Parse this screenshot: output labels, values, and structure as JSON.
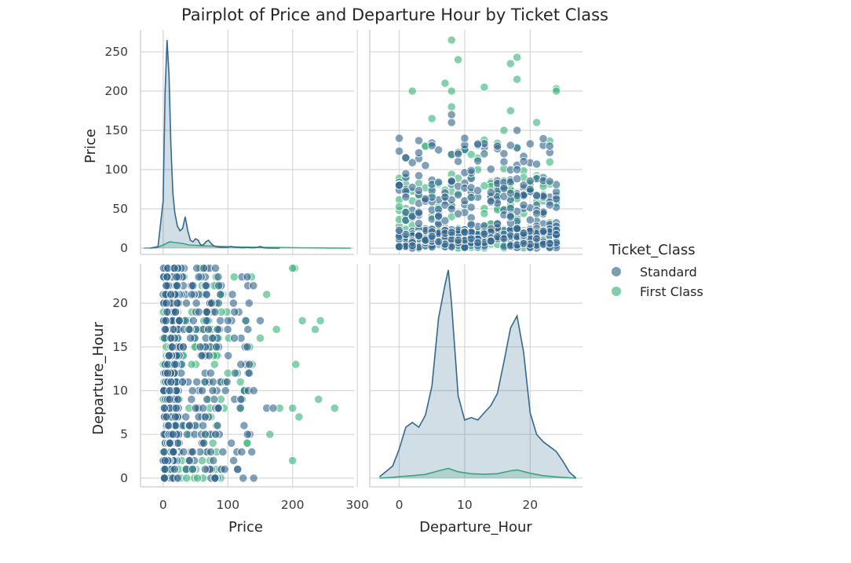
{
  "chart_data": {
    "type": "scatter",
    "title": "Pairplot of Price and Departure Hour by Ticket Class",
    "variables": [
      "Price",
      "Departure_Hour"
    ],
    "hue_variable": "Ticket_Class",
    "legend": {
      "title": "Ticket_Class",
      "position": "right",
      "entries": [
        "Standard",
        "First Class"
      ]
    },
    "colors": {
      "Standard": "#33688e",
      "First Class": "#3cb57a",
      "grid": "#d6d6d6",
      "background": "#ffffff"
    },
    "grid": true,
    "axes": {
      "Price": {
        "label": "Price",
        "range": [
          -35,
          295
        ],
        "ticks": [
          0,
          100,
          200,
          300
        ],
        "y_ticks": [
          0,
          50,
          100,
          150,
          200,
          250
        ],
        "y_range": [
          -8,
          278
        ]
      },
      "Departure_Hour": {
        "label": "Departure_Hour",
        "range": [
          -4.5,
          28
        ],
        "ticks": [
          0,
          10,
          20
        ],
        "y_ticks": [
          0,
          5,
          10,
          15,
          20
        ],
        "y_range": [
          -1,
          24.5
        ]
      }
    },
    "diagonal": [
      {
        "variable": "Price",
        "type": "kde",
        "series": [
          {
            "name": "Standard",
            "x": [
              -20,
              -8,
              0,
              3,
              6,
              9,
              12,
              15,
              18,
              22,
              26,
              30,
              34,
              38,
              42,
              46,
              50,
              54,
              58,
              62,
              66,
              70,
              74,
              78,
              82,
              88,
              95,
              100,
              105,
              110,
              115,
              120,
              125,
              130,
              135,
              140,
              145,
              150,
              155,
              160,
              170,
              180
            ],
            "y": [
              0,
              2,
              60,
              200,
              265,
              220,
              130,
              70,
              45,
              28,
              22,
              25,
              40,
              22,
              10,
              8,
              12,
              10,
              4,
              4,
              8,
              10,
              6,
              3,
              2,
              1,
              1,
              1,
              2,
              1,
              1,
              0.5,
              0.5,
              1,
              0.5,
              0.5,
              1,
              2,
              0.5,
              0.2,
              0,
              0
            ]
          },
          {
            "name": "First Class",
            "x": [
              -30,
              -10,
              0,
              10,
              20,
              30,
              40,
              60,
              80,
              100,
              120,
              150,
              180,
              210,
              240,
              270,
              290
            ],
            "y": [
              0,
              0.5,
              4,
              8,
              7,
              6,
              4,
              3,
              2.5,
              2,
              1.5,
              1,
              0.8,
              0.5,
              0.3,
              0.1,
              0
            ]
          }
        ]
      },
      {
        "variable": "Departure_Hour",
        "type": "kde",
        "series": [
          {
            "name": "Standard",
            "x": [
              -3,
              -1,
              0,
              1,
              2,
              3,
              4,
              5,
              6,
              7,
              7.5,
              8,
              9,
              10,
              11,
              12,
              13,
              14,
              15,
              16,
              17,
              18,
              19,
              20,
              21,
              22,
              23,
              24,
              25,
              26,
              27
            ],
            "y": [
              0.5,
              5,
              12,
              21,
              23,
              21,
              26,
              38,
              66,
              80,
              86,
              72,
              34,
              24,
              25,
              24,
              27,
              30,
              35,
              48,
              62,
              67,
              52,
              27,
              18,
              15,
              13,
              11,
              7,
              2.5,
              0
            ]
          },
          {
            "name": "First Class",
            "x": [
              -3,
              -1,
              0,
              2,
              4,
              6,
              7.5,
              9,
              11,
              13,
              15,
              17,
              18,
              20,
              22,
              24,
              26,
              27
            ],
            "y": [
              0,
              0.3,
              0.6,
              1,
              1.5,
              3,
              4,
              2.6,
              1.8,
              1.6,
              1.8,
              3,
              3.4,
              2,
              1,
              0.5,
              0.1,
              0
            ]
          }
        ]
      }
    ],
    "scatter_points": [
      {
        "series": "Standard",
        "price": 2,
        "hour": 8
      },
      {
        "series": "Standard",
        "price": 3,
        "hour": 17
      },
      {
        "series": "Standard",
        "price": 5,
        "hour": 7
      },
      {
        "series": "Standard",
        "price": 4,
        "hour": 18
      },
      {
        "series": "Standard",
        "price": 8,
        "hour": 6
      },
      {
        "series": "Standard",
        "price": 6,
        "hour": 19
      },
      {
        "series": "Standard",
        "price": 10,
        "hour": 9
      },
      {
        "series": "Standard",
        "price": 12,
        "hour": 16
      },
      {
        "series": "Standard",
        "price": 15,
        "hour": 5
      },
      {
        "series": "Standard",
        "price": 3,
        "hour": 2
      },
      {
        "series": "Standard",
        "price": 5,
        "hour": 22
      },
      {
        "series": "Standard",
        "price": 20,
        "hour": 8
      },
      {
        "series": "Standard",
        "price": 25,
        "hour": 18
      },
      {
        "series": "Standard",
        "price": 7,
        "hour": 12
      },
      {
        "series": "Standard",
        "price": 9,
        "hour": 14
      },
      {
        "series": "Standard",
        "price": 35,
        "hour": 7
      },
      {
        "series": "Standard",
        "price": 40,
        "hour": 17
      },
      {
        "series": "Standard",
        "price": 2,
        "hour": 0
      },
      {
        "series": "Standard",
        "price": 6,
        "hour": 23
      },
      {
        "series": "Standard",
        "price": 50,
        "hour": 8
      },
      {
        "series": "Standard",
        "price": 55,
        "hour": 19
      },
      {
        "series": "Standard",
        "price": 65,
        "hour": 7
      },
      {
        "series": "Standard",
        "price": 70,
        "hour": 17
      },
      {
        "series": "Standard",
        "price": 85,
        "hour": 8
      },
      {
        "series": "Standard",
        "price": 100,
        "hour": 18
      },
      {
        "series": "Standard",
        "price": 110,
        "hour": 16
      },
      {
        "series": "Standard",
        "price": 130,
        "hour": 23
      },
      {
        "series": "Standard",
        "price": 160,
        "hour": 8
      },
      {
        "series": "Standard",
        "price": 170,
        "hour": 8
      },
      {
        "series": "Standard",
        "price": 150,
        "hour": 18
      },
      {
        "series": "Standard",
        "price": 120,
        "hour": 9
      },
      {
        "series": "Standard",
        "price": 95,
        "hour": 1
      },
      {
        "series": "Standard",
        "price": 45,
        "hour": 3
      },
      {
        "series": "Standard",
        "price": 30,
        "hour": 11
      },
      {
        "series": "Standard",
        "price": 18,
        "hour": 13
      },
      {
        "series": "Standard",
        "price": 12,
        "hour": 21
      },
      {
        "series": "Standard",
        "price": 60,
        "hour": 14
      },
      {
        "series": "Standard",
        "price": 75,
        "hour": 20
      },
      {
        "series": "Standard",
        "price": 80,
        "hour": 0
      },
      {
        "series": "Standard",
        "price": 140,
        "hour": 10
      },
      {
        "series": "First Class",
        "price": 15,
        "hour": 7
      },
      {
        "series": "First Class",
        "price": 25,
        "hour": 18
      },
      {
        "series": "First Class",
        "price": 40,
        "hour": 8
      },
      {
        "series": "First Class",
        "price": 55,
        "hour": 17
      },
      {
        "series": "First Class",
        "price": 70,
        "hour": 9
      },
      {
        "series": "First Class",
        "price": 90,
        "hour": 19
      },
      {
        "series": "First Class",
        "price": 120,
        "hour": 8
      },
      {
        "series": "First Class",
        "price": 150,
        "hour": 16
      },
      {
        "series": "First Class",
        "price": 160,
        "hour": 21
      },
      {
        "series": "First Class",
        "price": 175,
        "hour": 17
      },
      {
        "series": "First Class",
        "price": 200,
        "hour": 8
      },
      {
        "series": "First Class",
        "price": 205,
        "hour": 13
      },
      {
        "series": "First Class",
        "price": 215,
        "hour": 18
      },
      {
        "series": "First Class",
        "price": 235,
        "hour": 17
      },
      {
        "series": "First Class",
        "price": 243,
        "hour": 18
      },
      {
        "series": "First Class",
        "price": 265,
        "hour": 8
      },
      {
        "series": "First Class",
        "price": 240,
        "hour": 9
      },
      {
        "series": "First Class",
        "price": 200,
        "hour": 2
      },
      {
        "series": "First Class",
        "price": 210,
        "hour": 7
      },
      {
        "series": "First Class",
        "price": 180,
        "hour": 8
      },
      {
        "series": "First Class",
        "price": 203,
        "hour": 24
      },
      {
        "series": "First Class",
        "price": 200,
        "hour": 24
      },
      {
        "series": "First Class",
        "price": 130,
        "hour": 4
      },
      {
        "series": "First Class",
        "price": 100,
        "hour": 12
      },
      {
        "series": "First Class",
        "price": 60,
        "hour": 22
      },
      {
        "series": "First Class",
        "price": 35,
        "hour": 1
      },
      {
        "series": "First Class",
        "price": 165,
        "hour": 5
      },
      {
        "series": "First Class",
        "price": 125,
        "hour": 10
      },
      {
        "series": "First Class",
        "price": 80,
        "hour": 15
      },
      {
        "series": "First Class",
        "price": 20,
        "hour": 23
      }
    ]
  }
}
